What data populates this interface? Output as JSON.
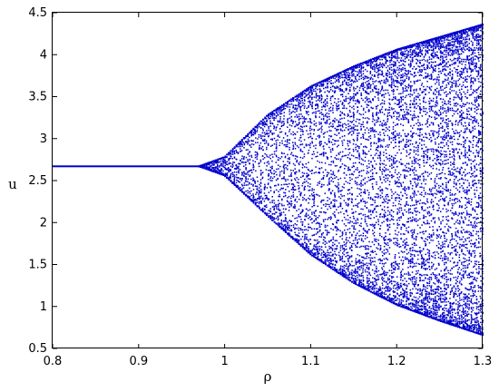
{
  "chart_data": {
    "type": "scatter",
    "title": "",
    "xlabel": "ρ",
    "ylabel": "u",
    "xlim": [
      0.8,
      1.3
    ],
    "ylim": [
      0.5,
      4.5
    ],
    "xticks": [
      "0.8",
      "0.9",
      "1",
      "1.1",
      "1.2",
      "1.3"
    ],
    "yticks": [
      "0.5",
      "1",
      "1.5",
      "2",
      "2.5",
      "3",
      "3.5",
      "4",
      "4.5"
    ],
    "grid": false,
    "legend": "none",
    "series": [
      {
        "color": "#0000cc",
        "bifurcation_point": 0.97,
        "stable_value": 2.67,
        "envelope_upper": [
          [
            0.97,
            2.67
          ],
          [
            1.0,
            2.78
          ],
          [
            1.05,
            3.28
          ],
          [
            1.1,
            3.62
          ],
          [
            1.15,
            3.86
          ],
          [
            1.2,
            4.06
          ],
          [
            1.25,
            4.21
          ],
          [
            1.3,
            4.36
          ]
        ],
        "envelope_lower": [
          [
            0.97,
            2.67
          ],
          [
            1.0,
            2.56
          ],
          [
            1.05,
            2.08
          ],
          [
            1.1,
            1.62
          ],
          [
            1.15,
            1.28
          ],
          [
            1.2,
            1.02
          ],
          [
            1.25,
            0.83
          ],
          [
            1.3,
            0.66
          ]
        ]
      }
    ]
  }
}
